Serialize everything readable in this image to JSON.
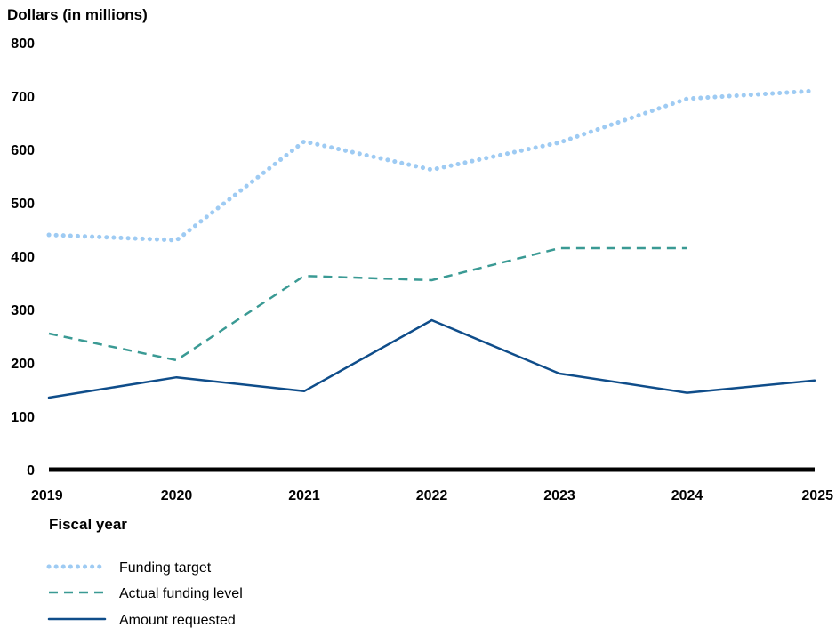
{
  "chart_data": {
    "type": "line",
    "ylabel": "Dollars (in millions)",
    "xlabel": "Fiscal year",
    "ylim": [
      0,
      800
    ],
    "yticks": [
      0,
      100,
      200,
      300,
      400,
      500,
      600,
      700,
      800
    ],
    "x": [
      "2019",
      "2020",
      "2021",
      "2022",
      "2023",
      "2024",
      "2025"
    ],
    "grid": false,
    "legend_position": "bottom-left",
    "series": [
      {
        "name": "Funding target",
        "style": "dotted",
        "color": "#9ecbf3",
        "values": [
          440,
          430,
          615,
          562,
          613,
          695,
          710
        ]
      },
      {
        "name": "Actual funding level",
        "style": "dashed",
        "color": "#3a9a94",
        "values": [
          255,
          205,
          363,
          355,
          415,
          415,
          null
        ]
      },
      {
        "name": "Amount requested",
        "style": "solid",
        "color": "#0f4d8a",
        "values": [
          135,
          173,
          147,
          280,
          180,
          144,
          167
        ]
      }
    ]
  }
}
